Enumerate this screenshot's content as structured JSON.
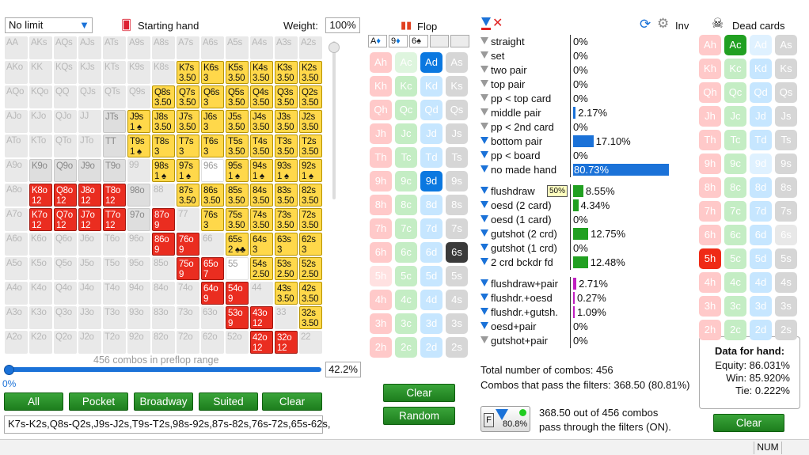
{
  "limit_select": "No limit",
  "starting_hand": "Starting hand",
  "weight_label": "Weight:",
  "weight_value": "100%",
  "matrix": [
    [
      [
        "AA",
        "",
        0
      ],
      [
        "AKs",
        "",
        0
      ],
      [
        "AQs",
        "",
        0
      ],
      [
        "AJs",
        "",
        0
      ],
      [
        "ATs",
        "",
        0
      ],
      [
        "A9s",
        "",
        0
      ],
      [
        "A8s",
        "",
        0
      ],
      [
        "A7s",
        "",
        0
      ],
      [
        "A6s",
        "",
        0
      ],
      [
        "A5s",
        "",
        0
      ],
      [
        "A4s",
        "",
        0
      ],
      [
        "A3s",
        "",
        0
      ],
      [
        "A2s",
        "",
        0
      ]
    ],
    [
      [
        "AKo",
        "",
        0
      ],
      [
        "KK",
        "",
        0
      ],
      [
        "KQs",
        "",
        0
      ],
      [
        "KJs",
        "",
        0
      ],
      [
        "KTs",
        "",
        0
      ],
      [
        "K9s",
        "",
        0
      ],
      [
        "K8s",
        "",
        0
      ],
      [
        "K7s",
        "3.50",
        2
      ],
      [
        "K6s",
        "3",
        2
      ],
      [
        "K5s",
        "3.50",
        2
      ],
      [
        "K4s",
        "3.50",
        2
      ],
      [
        "K3s",
        "3.50",
        2
      ],
      [
        "K2s",
        "3.50",
        2
      ]
    ],
    [
      [
        "AQo",
        "",
        0
      ],
      [
        "KQo",
        "",
        0
      ],
      [
        "QQ",
        "",
        0
      ],
      [
        "QJs",
        "",
        0
      ],
      [
        "QTs",
        "",
        0
      ],
      [
        "Q9s",
        "",
        0
      ],
      [
        "Q8s",
        "3.50",
        2
      ],
      [
        "Q7s",
        "3.50",
        2
      ],
      [
        "Q6s",
        "3",
        2
      ],
      [
        "Q5s",
        "3.50",
        2
      ],
      [
        "Q4s",
        "3.50",
        2
      ],
      [
        "Q3s",
        "3.50",
        2
      ],
      [
        "Q2s",
        "3.50",
        2
      ]
    ],
    [
      [
        "AJo",
        "",
        0
      ],
      [
        "KJo",
        "",
        0
      ],
      [
        "QJo",
        "",
        0
      ],
      [
        "JJ",
        "",
        0
      ],
      [
        "JTs",
        "",
        1
      ],
      [
        "J9s",
        "1 ♠",
        2
      ],
      [
        "J8s",
        "3.50",
        2
      ],
      [
        "J7s",
        "3.50",
        2
      ],
      [
        "J6s",
        "3",
        2
      ],
      [
        "J5s",
        "3.50",
        2
      ],
      [
        "J4s",
        "3.50",
        2
      ],
      [
        "J3s",
        "3.50",
        2
      ],
      [
        "J2s",
        "3.50",
        2
      ]
    ],
    [
      [
        "ATo",
        "",
        0
      ],
      [
        "KTo",
        "",
        0
      ],
      [
        "QTo",
        "",
        0
      ],
      [
        "JTo",
        "",
        0
      ],
      [
        "TT",
        "",
        1
      ],
      [
        "T9s",
        "1 ♠",
        2
      ],
      [
        "T8s",
        "3",
        2
      ],
      [
        "T7s",
        "3",
        2
      ],
      [
        "T6s",
        "3",
        2
      ],
      [
        "T5s",
        "3.50",
        2
      ],
      [
        "T4s",
        "3.50",
        2
      ],
      [
        "T3s",
        "3.50",
        2
      ],
      [
        "T2s",
        "3.50",
        2
      ]
    ],
    [
      [
        "A9o",
        "",
        0
      ],
      [
        "K9o",
        "",
        1
      ],
      [
        "Q9o",
        "",
        1
      ],
      [
        "J9o",
        "",
        1
      ],
      [
        "T9o",
        "",
        1
      ],
      [
        "99",
        "",
        0
      ],
      [
        "98s",
        "1 ♠",
        2
      ],
      [
        "97s",
        "1 ♠",
        2
      ],
      [
        "96s",
        "",
        4
      ],
      [
        "95s",
        "1 ♠",
        2
      ],
      [
        "94s",
        "1 ♠",
        2
      ],
      [
        "93s",
        "1 ♠",
        2
      ],
      [
        "92s",
        "1 ♠",
        2
      ]
    ],
    [
      [
        "A8o",
        "",
        0
      ],
      [
        "K8o",
        "12",
        3
      ],
      [
        "Q8o",
        "12",
        3
      ],
      [
        "J8o",
        "12",
        3
      ],
      [
        "T8o",
        "12",
        3
      ],
      [
        "98o",
        "",
        1
      ],
      [
        "88",
        "",
        0
      ],
      [
        "87s",
        "3.50",
        2
      ],
      [
        "86s",
        "3.50",
        2
      ],
      [
        "85s",
        "3.50",
        2
      ],
      [
        "84s",
        "3.50",
        2
      ],
      [
        "83s",
        "3.50",
        2
      ],
      [
        "82s",
        "3.50",
        2
      ]
    ],
    [
      [
        "A7o",
        "",
        0
      ],
      [
        "K7o",
        "12",
        3
      ],
      [
        "Q7o",
        "12",
        3
      ],
      [
        "J7o",
        "12",
        3
      ],
      [
        "T7o",
        "12",
        3
      ],
      [
        "97o",
        "",
        1
      ],
      [
        "87o",
        "9",
        3
      ],
      [
        "77",
        "",
        0
      ],
      [
        "76s",
        "3",
        2
      ],
      [
        "75s",
        "3.50",
        2
      ],
      [
        "74s",
        "3.50",
        2
      ],
      [
        "73s",
        "3.50",
        2
      ],
      [
        "72s",
        "3.50",
        2
      ]
    ],
    [
      [
        "A6o",
        "",
        0
      ],
      [
        "K6o",
        "",
        0
      ],
      [
        "Q6o",
        "",
        0
      ],
      [
        "J6o",
        "",
        0
      ],
      [
        "T6o",
        "",
        0
      ],
      [
        "96o",
        "",
        0
      ],
      [
        "86o",
        "9",
        3
      ],
      [
        "76o",
        "9",
        3
      ],
      [
        "66",
        "",
        0
      ],
      [
        "65s",
        "2 ♠♣",
        2
      ],
      [
        "64s",
        "3",
        2
      ],
      [
        "63s",
        "3",
        2
      ],
      [
        "62s",
        "3",
        2
      ]
    ],
    [
      [
        "A5o",
        "",
        0
      ],
      [
        "K5o",
        "",
        0
      ],
      [
        "Q5o",
        "",
        0
      ],
      [
        "J5o",
        "",
        0
      ],
      [
        "T5o",
        "",
        0
      ],
      [
        "95o",
        "",
        0
      ],
      [
        "85o",
        "",
        0
      ],
      [
        "75o",
        "9",
        3
      ],
      [
        "65o",
        "7",
        3
      ],
      [
        "55",
        "",
        4
      ],
      [
        "54s",
        "2.50",
        2
      ],
      [
        "53s",
        "2.50",
        2
      ],
      [
        "52s",
        "2.50",
        2
      ]
    ],
    [
      [
        "A4o",
        "",
        0
      ],
      [
        "K4o",
        "",
        0
      ],
      [
        "Q4o",
        "",
        0
      ],
      [
        "J4o",
        "",
        0
      ],
      [
        "T4o",
        "",
        0
      ],
      [
        "94o",
        "",
        0
      ],
      [
        "84o",
        "",
        0
      ],
      [
        "74o",
        "",
        0
      ],
      [
        "64o",
        "9",
        3
      ],
      [
        "54o",
        "9",
        3
      ],
      [
        "44",
        "",
        0
      ],
      [
        "43s",
        "3.50",
        2
      ],
      [
        "42s",
        "3.50",
        2
      ]
    ],
    [
      [
        "A3o",
        "",
        0
      ],
      [
        "K3o",
        "",
        0
      ],
      [
        "Q3o",
        "",
        0
      ],
      [
        "J3o",
        "",
        0
      ],
      [
        "T3o",
        "",
        0
      ],
      [
        "93o",
        "",
        0
      ],
      [
        "83o",
        "",
        0
      ],
      [
        "73o",
        "",
        0
      ],
      [
        "63o",
        "",
        0
      ],
      [
        "53o",
        "9",
        3
      ],
      [
        "43o",
        "12",
        3
      ],
      [
        "33",
        "",
        0
      ],
      [
        "32s",
        "3.50",
        2
      ]
    ],
    [
      [
        "A2o",
        "",
        0
      ],
      [
        "K2o",
        "",
        0
      ],
      [
        "Q2o",
        "",
        0
      ],
      [
        "J2o",
        "",
        0
      ],
      [
        "T2o",
        "",
        0
      ],
      [
        "92o",
        "",
        0
      ],
      [
        "82o",
        "",
        0
      ],
      [
        "72o",
        "",
        0
      ],
      [
        "62o",
        "",
        0
      ],
      [
        "52o",
        "",
        0
      ],
      [
        "42o",
        "12",
        3
      ],
      [
        "32o",
        "12",
        3
      ],
      [
        "22",
        "",
        0
      ]
    ]
  ],
  "range_caption": "456 combos in preflop range",
  "slider_pct": "0%",
  "slider_value": "42.2%",
  "range_buttons": [
    "All",
    "Pocket",
    "Broadway",
    "Suited",
    "Clear"
  ],
  "range_text": "K7s-K2s,Q8s-Q2s,J9s-J2s,T9s-T2s,98s-92s,87s-82s,76s-72s,65s-62s,",
  "flop_title": "Flop",
  "flop_cards": [
    [
      "A",
      "♦",
      "#0b78e0"
    ],
    [
      "9",
      "♦",
      "#0b78e0"
    ],
    [
      "6",
      "♠",
      "#222"
    ],
    [
      "",
      "",
      ""
    ],
    [
      "",
      "",
      ""
    ]
  ],
  "flop_buttons": [
    "Clear",
    "Random"
  ],
  "filter_rows": [
    {
      "label": "straight",
      "value": "0%",
      "bar": 0,
      "color": "#1b72d8",
      "g": true
    },
    {
      "label": "set",
      "value": "0%",
      "bar": 0,
      "color": "#1b72d8",
      "g": true
    },
    {
      "label": "two pair",
      "value": "0%",
      "bar": 0,
      "color": "#1b72d8",
      "g": true
    },
    {
      "label": "top pair",
      "value": "0%",
      "bar": 0,
      "color": "#1b72d8",
      "g": true
    },
    {
      "label": "pp < top card",
      "value": "0%",
      "bar": 0,
      "color": "#1b72d8",
      "g": true
    },
    {
      "label": "middle pair",
      "value": "2.17%",
      "bar": 2.17,
      "color": "#1b72d8",
      "g": true
    },
    {
      "label": "pp < 2nd card",
      "value": "0%",
      "bar": 0,
      "color": "#1b72d8",
      "g": true
    },
    {
      "label": "bottom pair",
      "value": "17.10%",
      "bar": 17.1,
      "color": "#1b72d8",
      "g": false
    },
    {
      "label": "pp < board",
      "value": "0%",
      "bar": 0,
      "color": "#1b72d8",
      "g": false
    },
    {
      "label": "no made hand",
      "value": "80.73%",
      "bar": 80.73,
      "color": "#1b72d8",
      "g": false
    },
    {
      "label": "flushdraw",
      "value": "8.55%",
      "bar": 8.55,
      "color": "#21a021",
      "g": false,
      "tag": "50%"
    },
    {
      "label": "oesd (2 card)",
      "value": "4.34%",
      "bar": 4.34,
      "color": "#21a021",
      "g": false
    },
    {
      "label": "oesd (1 card)",
      "value": "0%",
      "bar": 0,
      "color": "#21a021",
      "g": false
    },
    {
      "label": "gutshot (2 crd)",
      "value": "12.75%",
      "bar": 12.75,
      "color": "#21a021",
      "g": false
    },
    {
      "label": "gutshot (1 crd)",
      "value": "0%",
      "bar": 0,
      "color": "#21a021",
      "g": false
    },
    {
      "label": "2 crd bckdr fd",
      "value": "12.48%",
      "bar": 12.48,
      "color": "#21a021",
      "g": false
    },
    {
      "label": "flushdraw+pair",
      "value": "2.71%",
      "bar": 2.71,
      "color": "#c020c0",
      "g": false
    },
    {
      "label": "flushdr.+oesd",
      "value": "0.27%",
      "bar": 0.27,
      "color": "#c020c0",
      "g": false
    },
    {
      "label": "flushdr.+gutsh.",
      "value": "1.09%",
      "bar": 1.09,
      "color": "#c020c0",
      "g": false
    },
    {
      "label": "oesd+pair",
      "value": "0%",
      "bar": 0,
      "color": "#c020c0",
      "g": false
    },
    {
      "label": "gutshot+pair",
      "value": "0%",
      "bar": 0,
      "color": "#c020c0",
      "g": true
    }
  ],
  "total_combos": "Total number of combos: 456",
  "pass_combos": "Combos that pass the filters: 368.50 (80.81%)",
  "filter_badge": "80.8%",
  "pass_line1": "368.50 out of 456 combos",
  "pass_line2": "pass through the filters (ON).",
  "inv_label": "Inv",
  "dead_title": "Dead cards",
  "hand_data_title": "Data for hand:",
  "equity": "Equity: 86.031%",
  "win": "Win: 85.920%",
  "tie": "Tie: 0.222%",
  "dead_clear": "Clear",
  "status": "NUM"
}
